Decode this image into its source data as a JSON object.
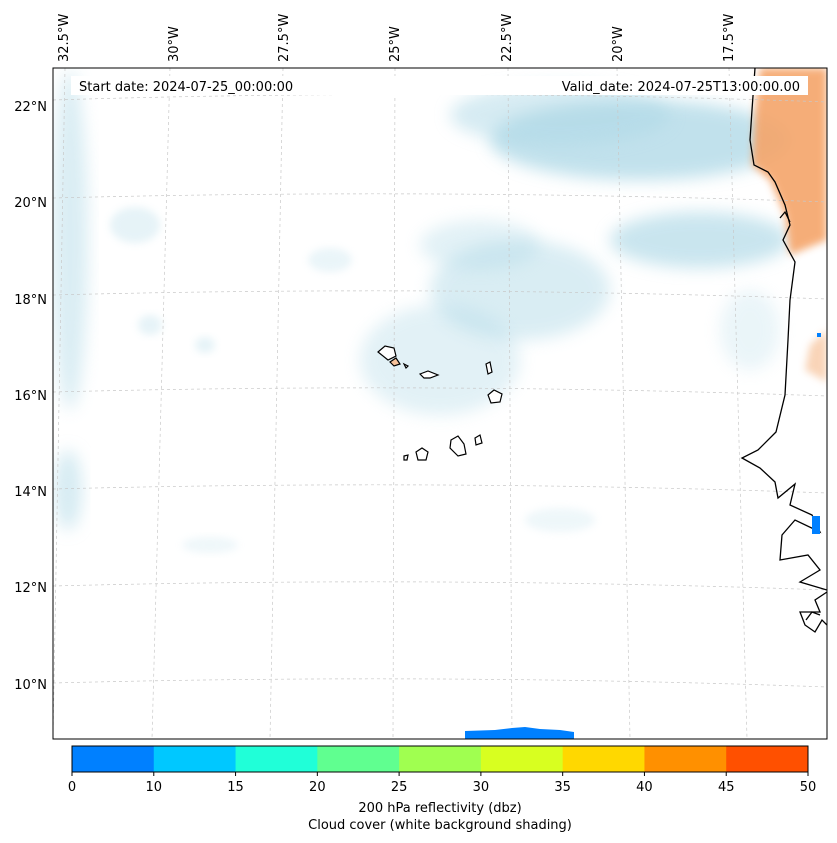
{
  "header": {
    "start_date": "Start date: 2024-07-25_00:00:00",
    "valid_date": "Valid_date: 2024-07-25T13:00:00.00"
  },
  "map": {
    "longitude_labels": [
      "32.5°W",
      "30°W",
      "27.5°W",
      "25°W",
      "22.5°W",
      "20°W",
      "17.5°W"
    ],
    "latitude_labels": [
      "22°N",
      "20°N",
      "18°N",
      "16°N",
      "14°N",
      "12°N",
      "10°N"
    ],
    "coastline_color": "#000000",
    "cloud_color": "#add8e6"
  },
  "colorbar": {
    "tick_labels": [
      "0",
      "10",
      "15",
      "20",
      "25",
      "30",
      "35",
      "40",
      "45",
      "50"
    ],
    "colors": [
      "#0080ff",
      "#00c8ff",
      "#20ffd8",
      "#60ff90",
      "#a0ff50",
      "#d8ff20",
      "#ffd800",
      "#ff9000",
      "#ff5000"
    ],
    "title_line1": "200 hPa reflectivity (dbz)",
    "title_line2": "Cloud cover (white background shading)"
  }
}
